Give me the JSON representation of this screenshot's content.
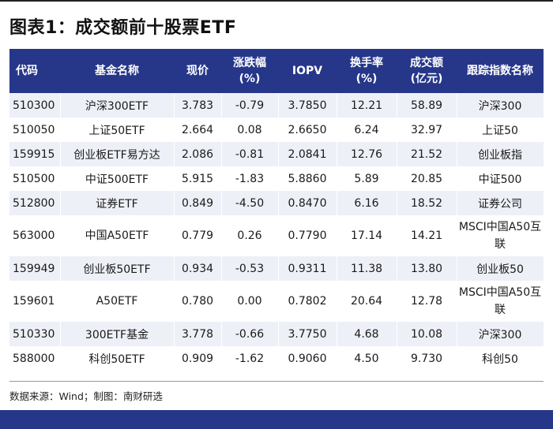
{
  "title": "图表1：成交额前十股票ETF",
  "table": {
    "headers": [
      "代码",
      "基金名称",
      "现价",
      "涨跌幅\n(%)",
      "IOPV",
      "换手率\n(%)",
      "成交额\n(亿元)",
      "跟踪指数名称"
    ],
    "header_lines": [
      [
        "代码"
      ],
      [
        "基金名称"
      ],
      [
        "现价"
      ],
      [
        "涨跌幅",
        "(%)"
      ],
      [
        "IOPV"
      ],
      [
        "换手率",
        "(%)"
      ],
      [
        "成交额",
        "(亿元)"
      ],
      [
        "跟踪指数名称"
      ]
    ],
    "rows": [
      [
        "510300",
        "沪深300ETF",
        "3.783",
        "-0.79",
        "3.7850",
        "12.21",
        "58.89",
        "沪深300"
      ],
      [
        "510050",
        "上证50ETF",
        "2.664",
        "0.08",
        "2.6650",
        "6.24",
        "32.97",
        "上证50"
      ],
      [
        "159915",
        "创业板ETF易方达",
        "2.086",
        "-0.81",
        "2.0841",
        "12.76",
        "21.52",
        "创业板指"
      ],
      [
        "510500",
        "中证500ETF",
        "5.915",
        "-1.83",
        "5.8860",
        "5.89",
        "20.85",
        "中证500"
      ],
      [
        "512800",
        "证券ETF",
        "0.849",
        "-4.50",
        "0.8470",
        "6.16",
        "18.52",
        "证券公司"
      ],
      [
        "563000",
        "中国A50ETF",
        "0.779",
        "0.26",
        "0.7790",
        "17.14",
        "14.21",
        "MSCI中国A50互联"
      ],
      [
        "159949",
        "创业板50ETF",
        "0.934",
        "-0.53",
        "0.9311",
        "11.38",
        "13.80",
        "创业板50"
      ],
      [
        "159601",
        "A50ETF",
        "0.780",
        "0.00",
        "0.7802",
        "20.64",
        "12.78",
        "MSCI中国A50互联"
      ],
      [
        "510330",
        "300ETF基金",
        "3.778",
        "-0.66",
        "3.7750",
        "4.68",
        "10.08",
        "沪深300"
      ],
      [
        "588000",
        "科创50ETF",
        "0.909",
        "-1.62",
        "0.9060",
        "4.50",
        "9.730",
        "科创50"
      ]
    ]
  },
  "source": "数据来源：Wind；制图：南财研选",
  "colors": {
    "header_bg": "#26378a",
    "stripe": "#eef0f8",
    "band": "#26378a"
  }
}
